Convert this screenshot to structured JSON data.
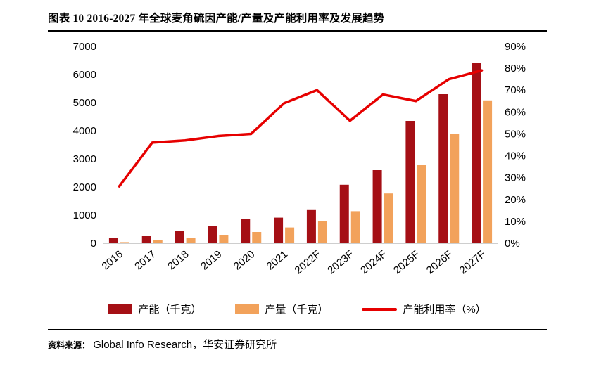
{
  "title": "图表 10 2016-2027 年全球麦角硫因产能/产量及产能利用率及发展趋势",
  "footer": {
    "source_label": "资料来源：",
    "source_text": "Global Info Research，华安证券研究所"
  },
  "colors": {
    "capacity_bar": "#A50F15",
    "output_bar": "#F2A25B",
    "utilization_line": "#E60000",
    "axis_text": "#000000",
    "baseline": "#9c9c9c"
  },
  "legend": [
    {
      "label": "产能（千克）",
      "swatch": "bar",
      "color": "#A50F15"
    },
    {
      "label": "产量（千克）",
      "swatch": "bar",
      "color": "#F2A25B"
    },
    {
      "label": "产能利用率（%）",
      "swatch": "line",
      "color": "#E60000"
    }
  ],
  "chart_data": {
    "type": "bar+line",
    "title": "图表 10 2016-2027 年全球麦角硫因产能/产量及产能利用率及发展趋势",
    "categories": [
      "2016",
      "2017",
      "2018",
      "2019",
      "2020",
      "2021",
      "2022F",
      "2023F",
      "2024F",
      "2025F",
      "2026F",
      "2027F"
    ],
    "series": [
      {
        "name": "产能（千克）",
        "type": "bar",
        "axis": "left",
        "color": "#A50F15",
        "values": [
          200,
          270,
          450,
          620,
          850,
          910,
          1180,
          2080,
          2600,
          4350,
          5300,
          6400
        ]
      },
      {
        "name": "产量（千克）",
        "type": "bar",
        "axis": "left",
        "color": "#F2A25B",
        "values": [
          40,
          110,
          200,
          300,
          400,
          560,
          800,
          1140,
          1770,
          2800,
          3900,
          5080
        ]
      },
      {
        "name": "产能利用率（%）",
        "type": "line",
        "axis": "right",
        "color": "#E60000",
        "values": [
          26,
          46,
          47,
          49,
          50,
          64,
          70,
          56,
          68,
          65,
          75,
          79
        ]
      }
    ],
    "left_axis": {
      "min": 0,
      "max": 7000,
      "ticks": [
        "0",
        "1000",
        "2000",
        "3000",
        "4000",
        "5000",
        "6000",
        "7000"
      ]
    },
    "right_axis": {
      "min": 0,
      "max": 90,
      "ticks": [
        "0%",
        "10%",
        "20%",
        "30%",
        "40%",
        "50%",
        "60%",
        "70%",
        "80%",
        "90%"
      ]
    },
    "grid": false,
    "legend_position": "bottom"
  }
}
